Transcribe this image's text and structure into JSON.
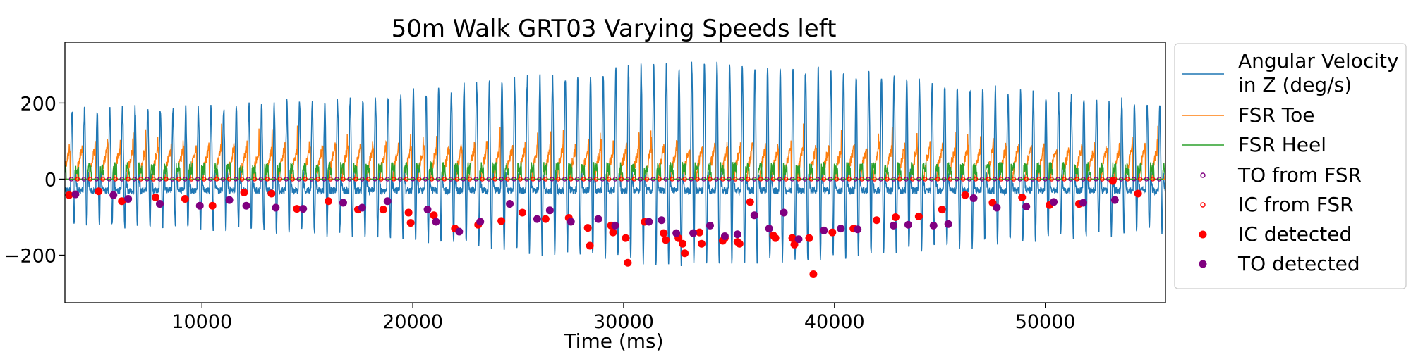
{
  "chart_data": {
    "type": "line",
    "title": "50m Walk GRT03 Varying Speeds left",
    "xlabel": "Time (ms)",
    "ylabel": "",
    "xlim": [
      3500,
      55700
    ],
    "ylim": [
      -325,
      360
    ],
    "x_ticks": [
      10000,
      20000,
      30000,
      40000,
      50000
    ],
    "x_tick_labels": [
      "10000",
      "20000",
      "30000",
      "40000",
      "50000"
    ],
    "y_ticks": [
      -200,
      0,
      200
    ],
    "y_tick_labels": [
      "−200",
      "0",
      "200"
    ],
    "grid": false,
    "legend_placement": "outside-right",
    "series": [
      {
        "name": "Angular Velocity\n in Z (deg/s)",
        "color": "#1f77b4",
        "kind": "line",
        "approx_range": [
          -290,
          330
        ]
      },
      {
        "name": "FSR Toe",
        "color": "#ff7f0e",
        "kind": "line",
        "approx_range": [
          0,
          170
        ]
      },
      {
        "name": "FSR Heel",
        "color": "#2ca02c",
        "kind": "line",
        "approx_range": [
          0,
          170
        ]
      },
      {
        "name": "TO from FSR",
        "color": "#800080",
        "kind": "hollow-marker",
        "y": 0
      },
      {
        "name": "IC from FSR",
        "color": "#ff0000",
        "kind": "hollow-marker",
        "y": 0
      },
      {
        "name": "IC detected",
        "color": "#ff0000",
        "kind": "filled-marker",
        "points": [
          [
            3700,
            -42
          ],
          [
            5100,
            -32
          ],
          [
            6200,
            -58
          ],
          [
            7800,
            -48
          ],
          [
            9200,
            -52
          ],
          [
            10500,
            -70
          ],
          [
            12000,
            -35
          ],
          [
            13300,
            -38
          ],
          [
            14500,
            -78
          ],
          [
            16000,
            -58
          ],
          [
            17400,
            -80
          ],
          [
            18600,
            -80
          ],
          [
            19800,
            -88
          ],
          [
            19900,
            -115
          ],
          [
            21000,
            -95
          ],
          [
            22000,
            -130
          ],
          [
            23100,
            -120
          ],
          [
            24200,
            -110
          ],
          [
            25200,
            -88
          ],
          [
            26300,
            -105
          ],
          [
            27400,
            -102
          ],
          [
            28300,
            -128
          ],
          [
            28400,
            -175
          ],
          [
            29400,
            -122
          ],
          [
            29500,
            -140
          ],
          [
            30100,
            -155
          ],
          [
            30200,
            -220
          ],
          [
            31000,
            -112
          ],
          [
            31900,
            -142
          ],
          [
            32000,
            -160
          ],
          [
            32600,
            -155
          ],
          [
            32800,
            -170
          ],
          [
            32900,
            -195
          ],
          [
            33600,
            -140
          ],
          [
            33700,
            -170
          ],
          [
            34700,
            -162
          ],
          [
            34800,
            -155
          ],
          [
            35400,
            -165
          ],
          [
            35500,
            -170
          ],
          [
            36000,
            -60
          ],
          [
            37100,
            -148
          ],
          [
            37200,
            -155
          ],
          [
            38000,
            -155
          ],
          [
            38100,
            -172
          ],
          [
            38800,
            -155
          ],
          [
            39000,
            -250
          ],
          [
            39900,
            -140
          ],
          [
            40900,
            -130
          ],
          [
            42000,
            -108
          ],
          [
            42900,
            -100
          ],
          [
            44000,
            -98
          ],
          [
            45100,
            -80
          ],
          [
            46200,
            -42
          ],
          [
            47500,
            -62
          ],
          [
            48900,
            -48
          ],
          [
            50200,
            -68
          ],
          [
            51600,
            -65
          ],
          [
            53200,
            -5
          ],
          [
            54400,
            -38
          ]
        ]
      },
      {
        "name": "TO detected",
        "color": "#800080",
        "kind": "filled-marker",
        "points": [
          [
            4000,
            -40
          ],
          [
            5800,
            -42
          ],
          [
            6500,
            -52
          ],
          [
            8000,
            -65
          ],
          [
            9900,
            -70
          ],
          [
            11300,
            -55
          ],
          [
            12100,
            -70
          ],
          [
            13500,
            -75
          ],
          [
            14800,
            -78
          ],
          [
            16700,
            -62
          ],
          [
            17600,
            -75
          ],
          [
            18800,
            -58
          ],
          [
            20700,
            -80
          ],
          [
            21100,
            -112
          ],
          [
            22200,
            -138
          ],
          [
            23200,
            -112
          ],
          [
            24600,
            -65
          ],
          [
            25900,
            -105
          ],
          [
            26500,
            -82
          ],
          [
            27500,
            -112
          ],
          [
            28800,
            -105
          ],
          [
            29600,
            -122
          ],
          [
            31200,
            -112
          ],
          [
            31800,
            -108
          ],
          [
            32500,
            -142
          ],
          [
            33300,
            -142
          ],
          [
            34100,
            -122
          ],
          [
            34800,
            -150
          ],
          [
            35400,
            -145
          ],
          [
            36200,
            -95
          ],
          [
            36900,
            -130
          ],
          [
            37600,
            -88
          ],
          [
            38300,
            -158
          ],
          [
            39500,
            -135
          ],
          [
            40300,
            -130
          ],
          [
            41100,
            -132
          ],
          [
            42800,
            -122
          ],
          [
            43500,
            -120
          ],
          [
            44700,
            -122
          ],
          [
            45400,
            -118
          ],
          [
            46600,
            -50
          ],
          [
            47700,
            -75
          ],
          [
            49100,
            -72
          ],
          [
            50400,
            -60
          ],
          [
            51800,
            -62
          ],
          [
            53300,
            -55
          ]
        ]
      }
    ]
  }
}
